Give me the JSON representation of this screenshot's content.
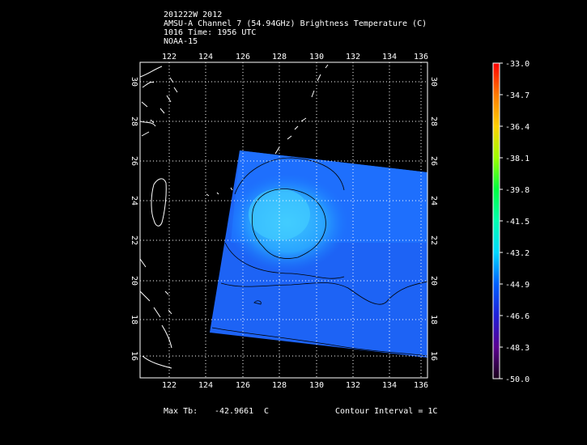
{
  "header": {
    "line1": "201222W 2012",
    "line2": "AMSU-A Channel 7 (54.94GHz) Brightness Temperature (C)",
    "line3": "1016 Time: 1956 UTC",
    "line4": "NOAA-15"
  },
  "map": {
    "lon_ticks": [
      "122",
      "124",
      "126",
      "128",
      "130",
      "132",
      "134",
      "136"
    ],
    "lat_ticks": [
      "16",
      "18",
      "20",
      "22",
      "24",
      "26",
      "28",
      "30"
    ],
    "lon_range": [
      120.0,
      136.5
    ],
    "lat_range": [
      15.0,
      31.0
    ],
    "grid": "dotted",
    "swath_color": "#1f6bff"
  },
  "colorbar": {
    "labels": [
      "-33.0",
      "-34.7",
      "-36.4",
      "-38.1",
      "-39.8",
      "-41.5",
      "-43.2",
      "-44.9",
      "-46.6",
      "-48.3",
      "-50.0"
    ],
    "colors": [
      "#ff0000",
      "#ff7a00",
      "#ffd000",
      "#9cff00",
      "#00ff40",
      "#00ffb0",
      "#00d8ff",
      "#0060ff",
      "#2020d8",
      "#5a0090",
      "#1a001a"
    ]
  },
  "footer": {
    "max_label": "Max Tb:",
    "max_value": "-42.9661",
    "max_unit": "C",
    "contour": "Contour Interval = 1C"
  }
}
